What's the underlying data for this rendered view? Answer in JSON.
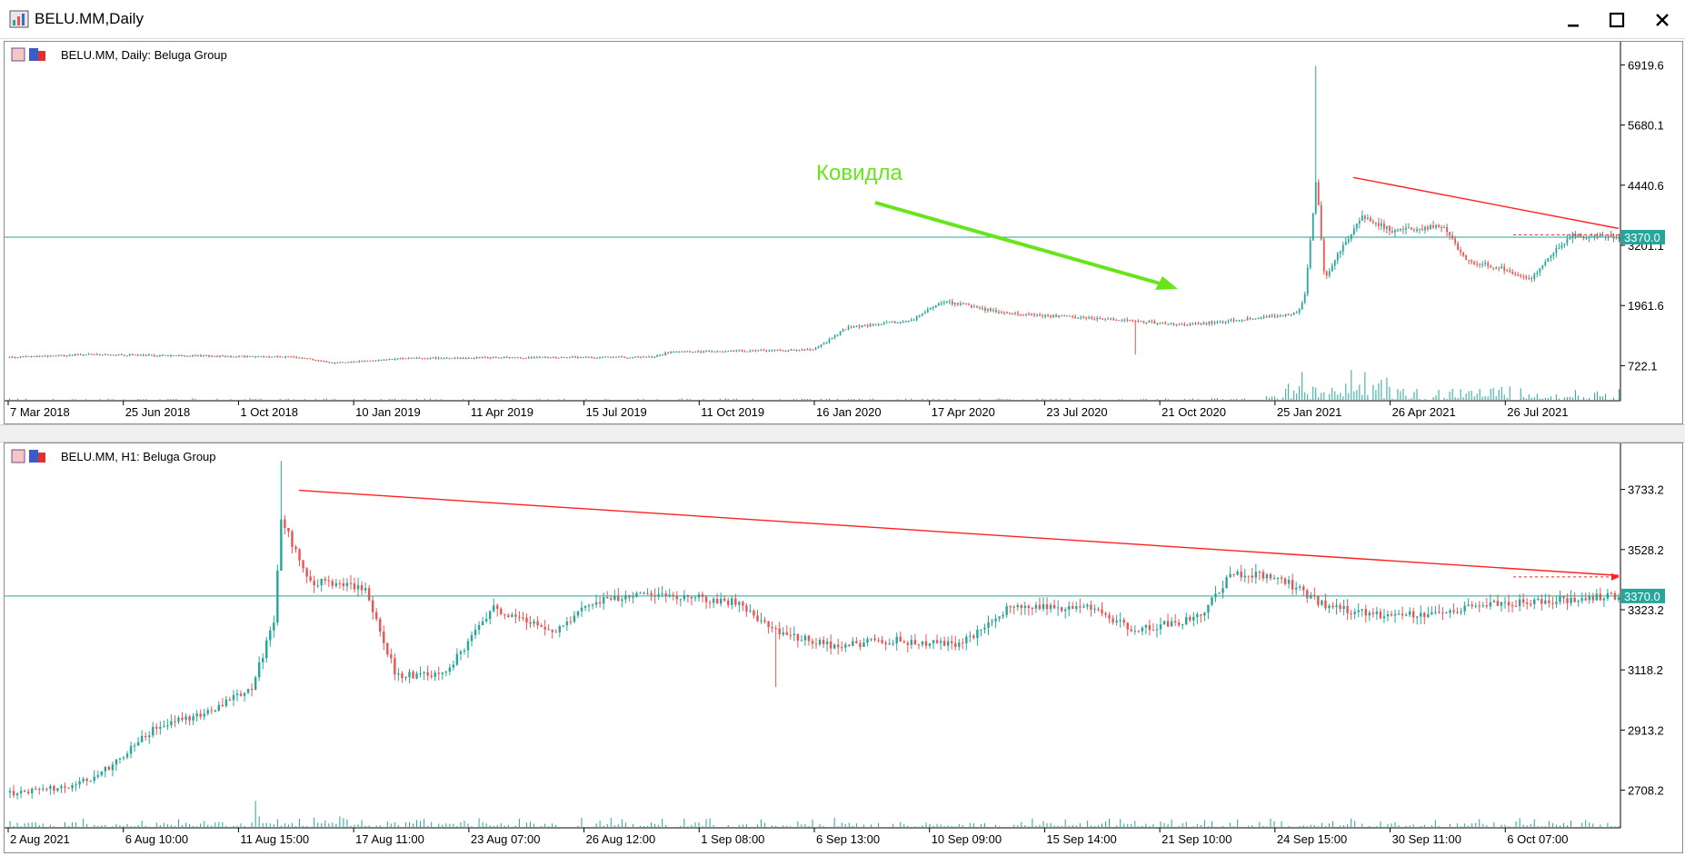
{
  "window": {
    "title": "BELU.MM,Daily",
    "icons": {
      "app": "chart-app-icon",
      "minimize": "minimize-icon",
      "maximize": "maximize-icon",
      "close": "close-icon"
    }
  },
  "colors": {
    "bull": "#26a69a",
    "bear": "#ef5350",
    "price_line": "#26a69a",
    "trendline": "#ff2020",
    "annotation": "#66e61a",
    "price_tag_text": "#ffffff"
  },
  "chart_data": [
    {
      "type": "candlestick",
      "label": "BELU.MM, Daily:  Beluga Group",
      "y_ticks": [
        "6919.6",
        "5680.1",
        "4440.6",
        "3201.1",
        "1961.6",
        "722.1"
      ],
      "ylim": [
        0,
        7245
      ],
      "x_ticks": [
        "7 Mar 2018",
        "25 Jun 2018",
        "1 Oct 2018",
        "10 Jan 2019",
        "11 Apr 2019",
        "15 Jul 2019",
        "11 Oct 2019",
        "16 Jan 2020",
        "17 Apr 2020",
        "23 Jul 2020",
        "21 Oct 2020",
        "25 Jan 2021",
        "26 Apr 2021",
        "26 Jul 2021"
      ],
      "current_price": "3370.0",
      "current_price_value": 3370,
      "annotation": {
        "text": "Ковидла",
        "color": "#66e61a"
      },
      "trendline": {
        "start_x": "Feb 2021",
        "start_value": 4600,
        "end_x": "Aug 2021",
        "end_value": 3550
      },
      "price_anchors": [
        {
          "x": 0.0,
          "price": 900
        },
        {
          "x": 0.05,
          "price": 950
        },
        {
          "x": 0.13,
          "price": 920
        },
        {
          "x": 0.18,
          "price": 900
        },
        {
          "x": 0.2,
          "price": 780
        },
        {
          "x": 0.25,
          "price": 880
        },
        {
          "x": 0.4,
          "price": 900
        },
        {
          "x": 0.41,
          "price": 1000
        },
        {
          "x": 0.5,
          "price": 1050
        },
        {
          "x": 0.52,
          "price": 1500
        },
        {
          "x": 0.56,
          "price": 1650
        },
        {
          "x": 0.58,
          "price": 2050
        },
        {
          "x": 0.62,
          "price": 1800
        },
        {
          "x": 0.7,
          "price": 1650
        },
        {
          "x": 0.73,
          "price": 1550
        },
        {
          "x": 0.8,
          "price": 1800
        },
        {
          "x": 0.805,
          "price": 2200
        },
        {
          "x": 0.812,
          "price": 4600
        },
        {
          "x": 0.817,
          "price": 2500
        },
        {
          "x": 0.825,
          "price": 3000
        },
        {
          "x": 0.84,
          "price": 3800
        },
        {
          "x": 0.86,
          "price": 3500
        },
        {
          "x": 0.89,
          "price": 3600
        },
        {
          "x": 0.905,
          "price": 2900
        },
        {
          "x": 0.93,
          "price": 2700
        },
        {
          "x": 0.945,
          "price": 2500
        },
        {
          "x": 0.96,
          "price": 3100
        },
        {
          "x": 0.97,
          "price": 3400
        },
        {
          "x": 1.0,
          "price": 3370
        }
      ]
    },
    {
      "type": "candlestick",
      "label": "BELU.MM, H1:  Beluga Group",
      "y_ticks": [
        "3733.2",
        "3528.2",
        "3323.2",
        "3118.2",
        "2913.2",
        "2708.2"
      ],
      "ylim": [
        2580,
        3865
      ],
      "x_ticks": [
        "2 Aug 2021",
        "6 Aug 10:00",
        "11 Aug 15:00",
        "17 Aug 11:00",
        "23 Aug 07:00",
        "26 Aug 12:00",
        "1 Sep 08:00",
        "6 Sep 13:00",
        "10 Sep 09:00",
        "15 Sep 14:00",
        "21 Sep 10:00",
        "24 Sep 15:00",
        "30 Sep 11:00",
        "6 Oct 07:00"
      ],
      "current_price": "3370.0",
      "current_price_value": 3370,
      "trendline": {
        "start_x": "11 Aug 2021",
        "start_value": 3730,
        "end_x": "7 Oct 2021",
        "end_value": 3440
      },
      "price_anchors": [
        {
          "x": 0.0,
          "price": 2700
        },
        {
          "x": 0.04,
          "price": 2720
        },
        {
          "x": 0.06,
          "price": 2780
        },
        {
          "x": 0.09,
          "price": 2920
        },
        {
          "x": 0.12,
          "price": 2970
        },
        {
          "x": 0.15,
          "price": 3050
        },
        {
          "x": 0.165,
          "price": 3300
        },
        {
          "x": 0.168,
          "price": 3650
        },
        {
          "x": 0.185,
          "price": 3420
        },
        {
          "x": 0.22,
          "price": 3400
        },
        {
          "x": 0.24,
          "price": 3100
        },
        {
          "x": 0.27,
          "price": 3100
        },
        {
          "x": 0.3,
          "price": 3330
        },
        {
          "x": 0.34,
          "price": 3250
        },
        {
          "x": 0.36,
          "price": 3350
        },
        {
          "x": 0.4,
          "price": 3380
        },
        {
          "x": 0.45,
          "price": 3350
        },
        {
          "x": 0.475,
          "price": 3250
        },
        {
          "x": 0.51,
          "price": 3200
        },
        {
          "x": 0.55,
          "price": 3220
        },
        {
          "x": 0.59,
          "price": 3200
        },
        {
          "x": 0.62,
          "price": 3330
        },
        {
          "x": 0.67,
          "price": 3330
        },
        {
          "x": 0.7,
          "price": 3250
        },
        {
          "x": 0.74,
          "price": 3300
        },
        {
          "x": 0.76,
          "price": 3450
        },
        {
          "x": 0.79,
          "price": 3430
        },
        {
          "x": 0.82,
          "price": 3330
        },
        {
          "x": 0.86,
          "price": 3300
        },
        {
          "x": 0.88,
          "price": 3310
        },
        {
          "x": 0.915,
          "price": 3340
        },
        {
          "x": 0.95,
          "price": 3350
        },
        {
          "x": 1.0,
          "price": 3370
        }
      ]
    }
  ]
}
